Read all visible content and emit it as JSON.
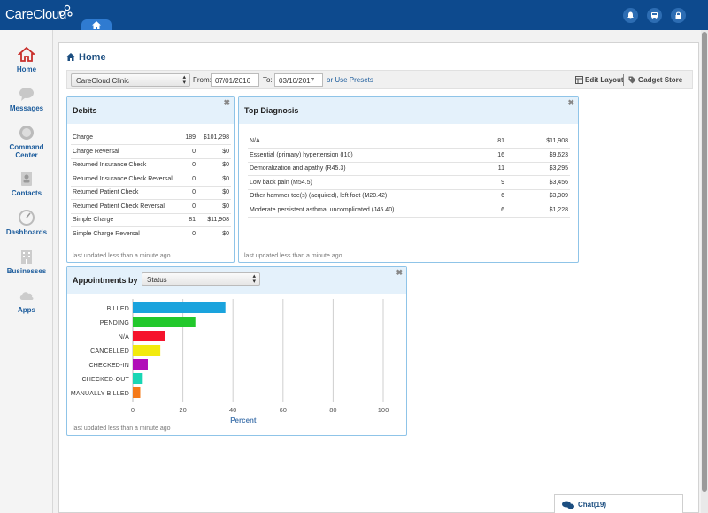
{
  "brand": {
    "logo_text": "CareCloud"
  },
  "topbar": {
    "icons": [
      "bell-icon",
      "car-icon",
      "lock-icon"
    ]
  },
  "sidebar": {
    "items": [
      {
        "label": "Home",
        "icon": "home-icon"
      },
      {
        "label": "Messages",
        "icon": "chat-bubble-icon"
      },
      {
        "label": "Command Center",
        "icon": "command-center-icon"
      },
      {
        "label": "Contacts",
        "icon": "contacts-icon"
      },
      {
        "label": "Dashboards",
        "icon": "gauge-icon"
      },
      {
        "label": "Businesses",
        "icon": "building-icon"
      },
      {
        "label": "Apps",
        "icon": "cloud-icon"
      }
    ]
  },
  "page": {
    "title": "Home"
  },
  "filters": {
    "clinic": "CareCloud Clinic",
    "from_label": "From:",
    "from_value": "07/01/2016",
    "to_label": "To:",
    "to_value": "03/10/2017",
    "presets_link": "or Use Presets",
    "edit_layout": "Edit Layout",
    "gadget_store": "Gadget Store"
  },
  "debits": {
    "title": "Debits",
    "rows": [
      {
        "name": "Charge",
        "count": "189",
        "amount": "$101,298"
      },
      {
        "name": "Charge Reversal",
        "count": "0",
        "amount": "$0"
      },
      {
        "name": "Returned Insurance Check",
        "count": "0",
        "amount": "$0"
      },
      {
        "name": "Returned Insurance Check Reversal",
        "count": "0",
        "amount": "$0"
      },
      {
        "name": "Returned Patient Check",
        "count": "0",
        "amount": "$0"
      },
      {
        "name": "Returned Patient Check Reversal",
        "count": "0",
        "amount": "$0"
      },
      {
        "name": "Simple Charge",
        "count": "81",
        "amount": "$11,908"
      },
      {
        "name": "Simple Charge Reversal",
        "count": "0",
        "amount": "$0"
      }
    ],
    "updated": "last updated less than a minute ago"
  },
  "diagnosis": {
    "title": "Top Diagnosis",
    "rows": [
      {
        "name": "N/A",
        "count": "81",
        "amount": "$11,908"
      },
      {
        "name": "Essential (primary) hypertension (I10)",
        "count": "16",
        "amount": "$9,623"
      },
      {
        "name": "Demoralization and apathy (R45.3)",
        "count": "11",
        "amount": "$3,295"
      },
      {
        "name": "Low back pain (M54.5)",
        "count": "9",
        "amount": "$3,456"
      },
      {
        "name": "Other hammer toe(s) (acquired), left foot (M20.42)",
        "count": "6",
        "amount": "$3,309"
      },
      {
        "name": "Moderate persistent asthma, uncomplicated (J45.40)",
        "count": "6",
        "amount": "$1,228"
      }
    ],
    "updated": "last updated less than a minute ago"
  },
  "appointments": {
    "title": "Appointments by",
    "group_by": "Status",
    "updated": "last updated less than a minute ago"
  },
  "chart_data": {
    "type": "bar",
    "orientation": "horizontal",
    "categories": [
      "BILLED",
      "PENDING",
      "N/A",
      "CANCELLED",
      "CHECKED-IN",
      "CHECKED-OUT",
      "MANUALLY BILLED"
    ],
    "values": [
      37,
      25,
      13,
      11,
      6,
      4,
      3
    ],
    "colors": [
      "#1aa3dd",
      "#22c82c",
      "#f5132c",
      "#f2ea0e",
      "#b10eb8",
      "#19d6b4",
      "#f47a1a"
    ],
    "xlabel": "Percent",
    "ylabel": "",
    "xlim": [
      0,
      100
    ],
    "xticks": [
      0,
      20,
      40,
      60,
      80,
      100
    ],
    "grid": true
  },
  "chat": {
    "label": "Chat(19)"
  },
  "colors": {
    "brand": "#0d4a8e",
    "accent": "#1c5c9c",
    "panel_head": "#e4f1fb"
  }
}
